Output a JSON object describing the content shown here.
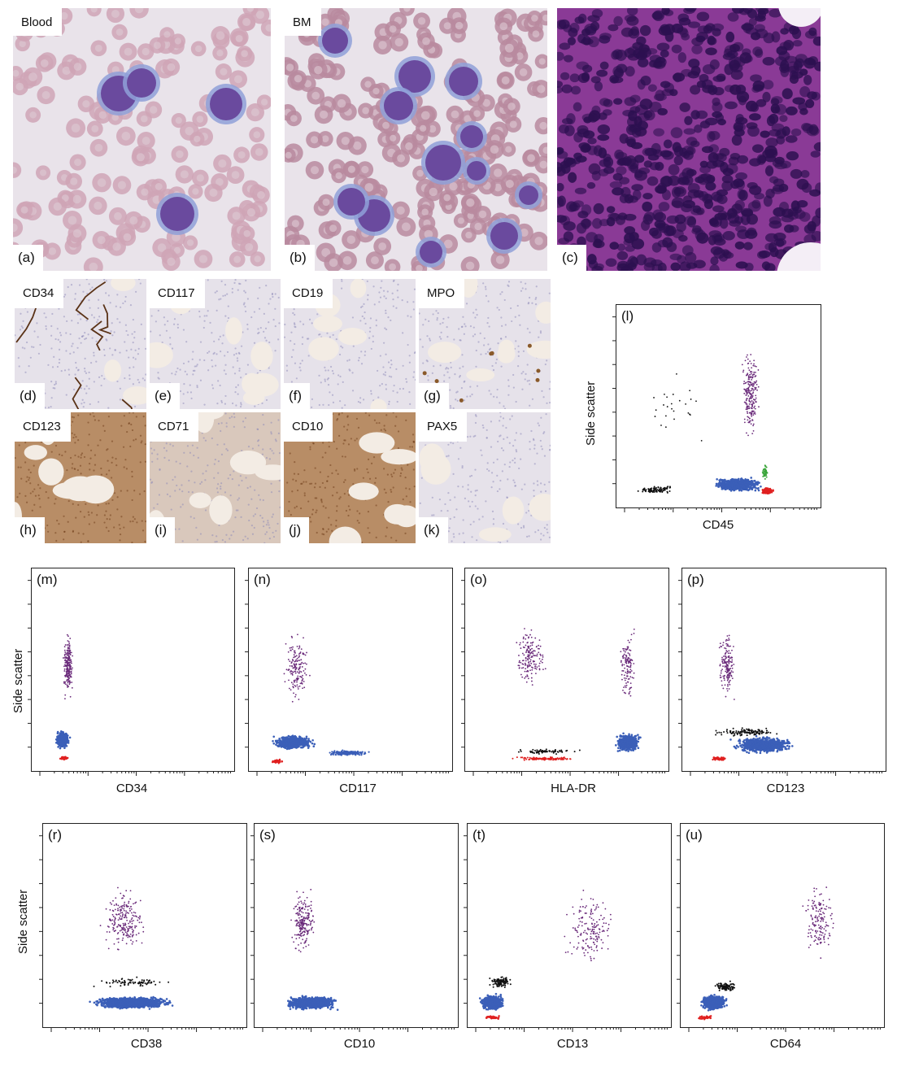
{
  "smears": [
    {
      "tag": "Blood",
      "label": "(a)"
    },
    {
      "tag": "BM",
      "label": "(b)"
    },
    {
      "tag": "",
      "label": "(c)"
    }
  ],
  "ihc": [
    {
      "tag": "CD34",
      "label": "(d)"
    },
    {
      "tag": "CD117",
      "label": "(e)"
    },
    {
      "tag": "CD19",
      "label": "(f)"
    },
    {
      "tag": "MPO",
      "label": "(g)"
    },
    {
      "tag": "CD123",
      "label": "(h)"
    },
    {
      "tag": "CD71",
      "label": "(i)"
    },
    {
      "tag": "CD10",
      "label": "(j)"
    },
    {
      "tag": "PAX5",
      "label": "(k)"
    }
  ],
  "flow": {
    "y_axis_label": "Side scatter",
    "plots": [
      {
        "label": "(l)",
        "x_label": "CD45"
      },
      {
        "label": "(m)",
        "x_label": "CD34"
      },
      {
        "label": "(n)",
        "x_label": "CD117"
      },
      {
        "label": "(o)",
        "x_label": "HLA-DR"
      },
      {
        "label": "(p)",
        "x_label": "CD123"
      },
      {
        "label": "(r)",
        "x_label": "CD38"
      },
      {
        "label": "(s)",
        "x_label": "CD10"
      },
      {
        "label": "(t)",
        "x_label": "CD13"
      },
      {
        "label": "(u)",
        "x_label": "CD64"
      }
    ]
  },
  "colors": {
    "blast_population": "#3b5fb8",
    "red_population": "#e02020",
    "black_events": "#111111",
    "purple_events": "#6a2a7a",
    "green_events": "#3aa53a",
    "wright_background": "#e9e3ea",
    "rbc": "#c9a7b8",
    "blast_nucleus": "#6a4a9e",
    "he_background": "#8a3a96",
    "he_nucleus": "#2c1050",
    "ihc_background": "#e6e2ea",
    "ihc_positive": "#a8703a"
  }
}
